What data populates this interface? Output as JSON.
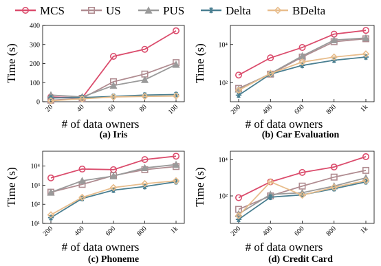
{
  "legend": [
    {
      "name": "MCS",
      "color": "#db4d6d",
      "marker": "circle"
    },
    {
      "name": "US",
      "color": "#b08c91",
      "marker": "square"
    },
    {
      "name": "PUS",
      "color": "#9a9a9a",
      "marker": "triangle"
    },
    {
      "name": "Delta",
      "color": "#4a7f91",
      "marker": "star"
    },
    {
      "name": "BDelta",
      "color": "#e8bd8c",
      "marker": "diamond"
    }
  ],
  "chart_data": [
    {
      "type": "line",
      "caption": "(a) Iris",
      "xlabel": "# of data owners",
      "ylabel": "Time (s)",
      "yscale": "linear",
      "xlim": [
        20,
        100
      ],
      "ylim": [
        0,
        400
      ],
      "x": [
        20,
        40,
        60,
        80,
        100
      ],
      "xtick_labels": [
        "20",
        "40",
        "60",
        "80",
        "100"
      ],
      "ytick_values": [
        0,
        100,
        200,
        300,
        400
      ],
      "ytick_labels": [
        "0",
        "100",
        "200",
        "300",
        "400"
      ],
      "series": [
        {
          "name": "MCS",
          "values": [
            25,
            20,
            238,
            275,
            372
          ]
        },
        {
          "name": "US",
          "values": [
            8,
            18,
            105,
            145,
            205
          ]
        },
        {
          "name": "PUS",
          "values": [
            35,
            25,
            85,
            115,
            195
          ]
        },
        {
          "name": "Delta",
          "values": [
            20,
            22,
            28,
            35,
            38
          ]
        },
        {
          "name": "BDelta",
          "values": [
            5,
            15,
            25,
            28,
            30
          ]
        }
      ]
    },
    {
      "type": "line",
      "caption": "(b) Car Evaluation",
      "xlabel": "# of data owners",
      "ylabel": "Time (s)",
      "yscale": "log",
      "xlim": [
        200,
        1000
      ],
      "ylim": [
        10,
        100000
      ],
      "x": [
        200,
        400,
        600,
        800,
        1000
      ],
      "xtick_labels": [
        "200",
        "400",
        "600",
        "800",
        "1k"
      ],
      "ytick_values": [
        100,
        10000
      ],
      "ytick_labels": [
        "10²",
        "10⁴"
      ],
      "series": [
        {
          "name": "MCS",
          "values": [
            250,
            2000,
            7000,
            35000,
            55000
          ]
        },
        {
          "name": "US",
          "values": [
            50,
            280,
            2200,
            14000,
            20000
          ]
        },
        {
          "name": "PUS",
          "values": [
            45,
            300,
            2500,
            17000,
            22000
          ]
        },
        {
          "name": "Delta",
          "values": [
            22,
            280,
            800,
            1500,
            2200
          ]
        },
        {
          "name": "BDelta",
          "values": [
            40,
            300,
            1200,
            2200,
            3200
          ]
        }
      ]
    },
    {
      "type": "line",
      "caption": "(c) Phoneme",
      "xlabel": "# of data owners",
      "ylabel": "Time (s)",
      "yscale": "log",
      "xlim": [
        200,
        1000
      ],
      "ylim": [
        10,
        60000
      ],
      "x": [
        200,
        400,
        600,
        800,
        1000
      ],
      "xtick_labels": [
        "200",
        "400",
        "600",
        "800",
        "1k"
      ],
      "ytick_values": [
        10,
        100,
        1000,
        10000
      ],
      "ytick_labels": [
        "10¹",
        "10²",
        "10³",
        "10⁴"
      ],
      "series": [
        {
          "name": "MCS",
          "values": [
            2400,
            7000,
            6500,
            22000,
            33000
          ]
        },
        {
          "name": "US",
          "values": [
            430,
            1100,
            3200,
            6500,
            9500
          ]
        },
        {
          "name": "PUS",
          "values": [
            420,
            1700,
            3000,
            8000,
            12000
          ]
        },
        {
          "name": "Delta",
          "values": [
            20,
            200,
            550,
            850,
            1500
          ]
        },
        {
          "name": "BDelta",
          "values": [
            28,
            230,
            750,
            1200,
            1700
          ]
        }
      ]
    },
    {
      "type": "line",
      "caption": "(d) Credit Card",
      "xlabel": "# of data owners",
      "ylabel": "Time (s)",
      "yscale": "log",
      "xlim": [
        200,
        1000
      ],
      "ylim": [
        3,
        30000
      ],
      "x": [
        200,
        400,
        600,
        800,
        1000
      ],
      "xtick_labels": [
        "200",
        "400",
        "600",
        "800",
        "1k"
      ],
      "ytick_values": [
        100,
        10000
      ],
      "ytick_labels": [
        "10²",
        "10⁴"
      ],
      "series": [
        {
          "name": "MCS",
          "values": [
            80,
            600,
            2000,
            4000,
            15000
          ]
        },
        {
          "name": "US",
          "values": [
            18,
            100,
            350,
            1100,
            2600
          ]
        },
        {
          "name": "PUS",
          "values": [
            10,
            120,
            150,
            350,
            1000
          ]
        },
        {
          "name": "Delta",
          "values": [
            5,
            85,
            115,
            250,
            600
          ]
        },
        {
          "name": "BDelta",
          "values": [
            8,
            600,
            110,
            300,
            700
          ]
        }
      ]
    }
  ]
}
